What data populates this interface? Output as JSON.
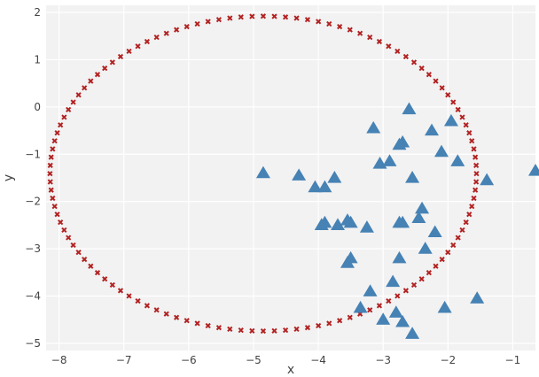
{
  "chart_data": {
    "type": "scatter",
    "xlabel": "x",
    "ylabel": "y",
    "xlim": [
      -8.2,
      -0.65
    ],
    "ylim": [
      -5.15,
      2.15
    ],
    "x_ticks": [
      -8,
      -7,
      -6,
      -5,
      -4,
      -3,
      -2,
      -1
    ],
    "y_ticks": [
      -5,
      -4,
      -3,
      -2,
      -1,
      0,
      1,
      2
    ],
    "grid": true,
    "background": "#f2f2f2",
    "gridline_color": "#ffffff",
    "series": [
      {
        "marker": "triangle",
        "color": "#4682b4",
        "x": [
          -4.85,
          -4.3,
          -4.05,
          -3.9,
          -3.75,
          -3.9,
          -3.95,
          -3.55,
          -3.5,
          -3.7,
          -3.25,
          -3.15,
          -3.05,
          -2.9,
          -2.75,
          -2.7,
          -2.6,
          -2.55,
          -2.75,
          -2.7,
          -2.45,
          -2.4,
          -2.25,
          -2.1,
          -2.2,
          -1.95,
          -1.85,
          -1.4,
          -0.65,
          -2.35,
          -3.5,
          -3.55,
          -3.2,
          -3.35,
          -2.75,
          -2.85,
          -3.0,
          -2.8,
          -2.7,
          -2.55,
          -2.05,
          -1.55
        ],
        "y": [
          -1.4,
          -1.45,
          -1.7,
          -1.7,
          -1.5,
          -2.45,
          -2.5,
          -2.4,
          -2.45,
          -2.5,
          -2.55,
          -0.45,
          -1.2,
          -1.15,
          -0.8,
          -0.75,
          -0.05,
          -1.5,
          -2.45,
          -2.45,
          -2.35,
          -2.15,
          -0.5,
          -0.95,
          -2.65,
          -0.3,
          -1.15,
          -1.55,
          -1.35,
          -3.0,
          -3.2,
          -3.3,
          -3.9,
          -4.25,
          -3.2,
          -3.7,
          -4.5,
          -4.35,
          -4.55,
          -4.8,
          -4.25,
          -4.05
        ]
      },
      {
        "marker": "cross",
        "color": "#b22222",
        "shape": "ellipse",
        "center": [
          -4.85,
          -1.41
        ],
        "radius_x": 3.29,
        "radius_y": 3.33,
        "n_points": 120
      }
    ]
  }
}
